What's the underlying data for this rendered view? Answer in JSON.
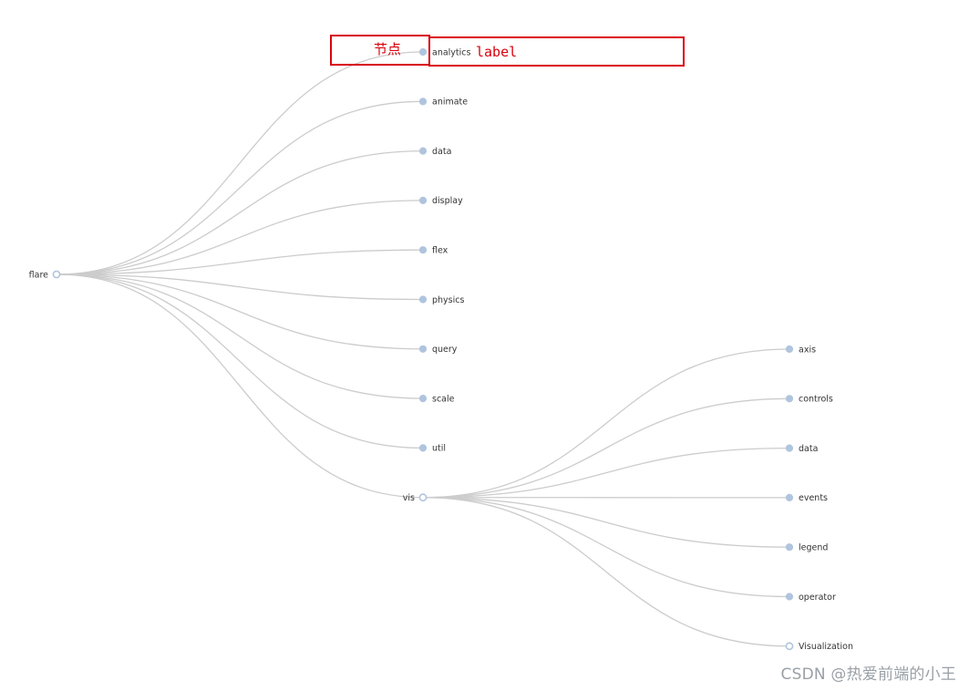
{
  "tree": {
    "root": "flare",
    "children": [
      {
        "name": "analytics",
        "leaf": true
      },
      {
        "name": "animate",
        "leaf": true
      },
      {
        "name": "data",
        "leaf": true
      },
      {
        "name": "display",
        "leaf": true
      },
      {
        "name": "flex",
        "leaf": true
      },
      {
        "name": "physics",
        "leaf": true
      },
      {
        "name": "query",
        "leaf": true
      },
      {
        "name": "scale",
        "leaf": true
      },
      {
        "name": "util",
        "leaf": true
      },
      {
        "name": "vis",
        "leaf": false,
        "children": [
          {
            "name": "axis",
            "leaf": true
          },
          {
            "name": "controls",
            "leaf": true
          },
          {
            "name": "data",
            "leaf": true
          },
          {
            "name": "events",
            "leaf": true
          },
          {
            "name": "legend",
            "leaf": true
          },
          {
            "name": "operator",
            "leaf": true
          },
          {
            "name": "Visualization",
            "leaf": false
          }
        ]
      }
    ]
  },
  "annotations": {
    "node_label": "节点",
    "label_label": "label"
  },
  "colors": {
    "link": "#cccccc",
    "node": "#b0c4de",
    "annotation": "#d9000c",
    "label_text": "#333333"
  },
  "watermark": "CSDN @热爱前端的小王"
}
